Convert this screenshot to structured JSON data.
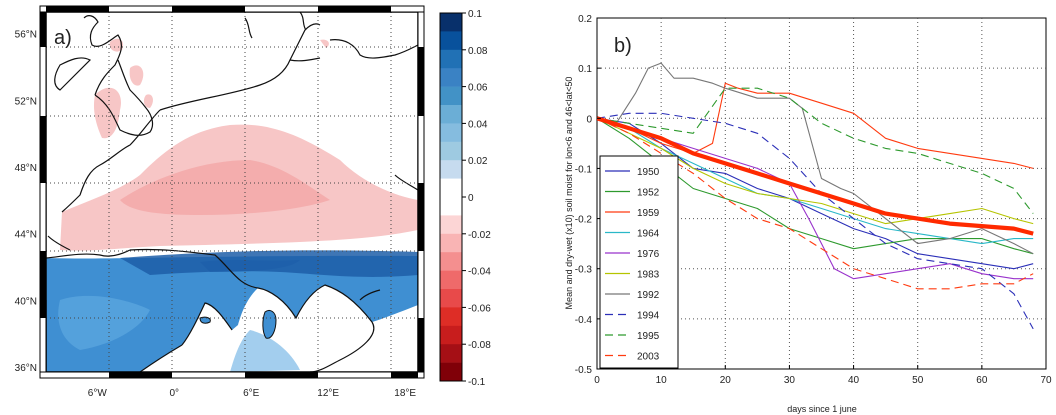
{
  "chart_data": [
    {
      "type": "heatmap",
      "panel_label": "a)",
      "x_tick_labels": [
        "6°W",
        "0°",
        "6°E",
        "12°E",
        "18°E"
      ],
      "y_tick_labels": [
        "56°N",
        "52°N",
        "48°N",
        "44°N",
        "40°N",
        "36°N"
      ],
      "x_ticks": [
        -6,
        0,
        6,
        12,
        18
      ],
      "y_ticks": [
        56,
        52,
        48,
        44,
        40,
        36
      ],
      "xlim": [
        -10,
        19
      ],
      "ylim": [
        35.7,
        57.3
      ],
      "grid": true,
      "grid_style": "dotted",
      "colorbar": {
        "tick_labels": [
          "0.1",
          "0.08",
          "0.06",
          "0.04",
          "0.02",
          "0",
          "-0.02",
          "-0.04",
          "-0.06",
          "-0.08",
          "-0.1"
        ],
        "range": [
          -0.1,
          0.1
        ],
        "levels": 20,
        "colors": [
          "#08306b",
          "#08519c",
          "#2171b5",
          "#3a82c4",
          "#4292c6",
          "#6baed6",
          "#85bcdf",
          "#9ecae1",
          "#c6dbef",
          "#ffffff",
          "#ffffff",
          "#fcd5d5",
          "#f9b4b4",
          "#f48f8f",
          "#ef6a6a",
          "#e84a4a",
          "#de2d26",
          "#c81d1d",
          "#a50f15",
          "#800008"
        ]
      },
      "colors": {
        "land_outline": "#111111",
        "negative_area": "#f7c6c6",
        "positive_area": "#3f8fd2",
        "positive_dark": "#1d5ea8"
      }
    },
    {
      "type": "line",
      "panel_label": "b)",
      "xlabel": "days since 1 june",
      "ylabel": "Mean and dry-wet (x10) soil moist for lon<6 and 46<lat<50",
      "xlim": [
        0,
        70
      ],
      "ylim": [
        -0.5,
        0.2
      ],
      "x_ticks": [
        0,
        10,
        20,
        30,
        40,
        50,
        60,
        70
      ],
      "x_tick_labels": [
        "0",
        "10",
        "20",
        "30",
        "40",
        "50",
        "60",
        "70"
      ],
      "y_ticks": [
        0.2,
        0.1,
        0,
        -0.1,
        -0.2,
        -0.3,
        -0.4,
        -0.5
      ],
      "y_tick_labels": [
        "0.2",
        "0.1",
        "0",
        "-0.1",
        "-0.2",
        "-0.3",
        "-0.4",
        "-0.5"
      ],
      "grid": true,
      "legend_position": "left",
      "series": [
        {
          "name": "1950",
          "color": "#2b2fb8",
          "dash": "solid",
          "x": [
            0,
            5,
            10,
            15,
            20,
            25,
            30,
            35,
            40,
            45,
            50,
            55,
            60,
            65,
            68
          ],
          "y": [
            0,
            -0.01,
            -0.05,
            -0.1,
            -0.11,
            -0.14,
            -0.16,
            -0.19,
            -0.22,
            -0.24,
            -0.27,
            -0.28,
            -0.29,
            -0.3,
            -0.29
          ]
        },
        {
          "name": "1952",
          "color": "#2e9a2e",
          "dash": "solid",
          "x": [
            0,
            5,
            10,
            15,
            20,
            25,
            30,
            35,
            40,
            45,
            50,
            55,
            60,
            65,
            68
          ],
          "y": [
            0,
            -0.04,
            -0.09,
            -0.14,
            -0.16,
            -0.18,
            -0.22,
            -0.24,
            -0.26,
            -0.25,
            -0.24,
            -0.24,
            -0.24,
            -0.26,
            -0.27
          ]
        },
        {
          "name": "1959",
          "color": "#ff3b10",
          "dash": "solid",
          "x": [
            0,
            5,
            10,
            15,
            18,
            20,
            22,
            25,
            30,
            35,
            40,
            45,
            50,
            55,
            60,
            65,
            68
          ],
          "y": [
            0,
            -0.02,
            -0.05,
            -0.07,
            -0.05,
            0.07,
            0.06,
            0.05,
            0.05,
            0.03,
            0.01,
            -0.04,
            -0.06,
            -0.07,
            -0.08,
            -0.09,
            -0.1
          ]
        },
        {
          "name": "1964",
          "color": "#2ab8c8",
          "dash": "solid",
          "x": [
            0,
            5,
            10,
            15,
            20,
            25,
            30,
            35,
            40,
            45,
            50,
            55,
            60,
            65,
            68
          ],
          "y": [
            0,
            -0.02,
            -0.06,
            -0.09,
            -0.12,
            -0.15,
            -0.16,
            -0.18,
            -0.2,
            -0.22,
            -0.23,
            -0.24,
            -0.25,
            -0.24,
            -0.24
          ]
        },
        {
          "name": "1976",
          "color": "#9933cc",
          "dash": "solid",
          "x": [
            0,
            5,
            10,
            15,
            20,
            25,
            30,
            33,
            37,
            40,
            45,
            50,
            55,
            60,
            65,
            68
          ],
          "y": [
            0,
            -0.02,
            -0.04,
            -0.06,
            -0.08,
            -0.1,
            -0.13,
            -0.2,
            -0.3,
            -0.32,
            -0.31,
            -0.3,
            -0.29,
            -0.31,
            -0.32,
            -0.32
          ]
        },
        {
          "name": "1983",
          "color": "#b5c400",
          "dash": "solid",
          "x": [
            0,
            5,
            10,
            15,
            20,
            25,
            30,
            35,
            40,
            45,
            50,
            55,
            60,
            65,
            68
          ],
          "y": [
            0,
            -0.03,
            -0.06,
            -0.1,
            -0.13,
            -0.15,
            -0.16,
            -0.17,
            -0.19,
            -0.21,
            -0.2,
            -0.19,
            -0.18,
            -0.2,
            -0.21
          ]
        },
        {
          "name": "1992",
          "color": "#777777",
          "dash": "solid",
          "x": [
            0,
            3,
            6,
            8,
            10,
            12,
            15,
            18,
            20,
            25,
            30,
            32,
            35,
            38,
            40,
            45,
            50,
            55,
            60,
            65,
            68
          ],
          "y": [
            0,
            -0.01,
            0.05,
            0.1,
            0.11,
            0.08,
            0.08,
            0.07,
            0.06,
            0.04,
            0.04,
            0.02,
            -0.12,
            -0.14,
            -0.15,
            -0.2,
            -0.25,
            -0.24,
            -0.22,
            -0.25,
            -0.27
          ]
        },
        {
          "name": "1994",
          "color": "#2b2fb8",
          "dash": "longdash",
          "x": [
            0,
            5,
            10,
            15,
            20,
            25,
            30,
            35,
            40,
            45,
            50,
            55,
            60,
            65,
            68
          ],
          "y": [
            0,
            0.01,
            0.01,
            0,
            -0.01,
            -0.03,
            -0.08,
            -0.15,
            -0.2,
            -0.25,
            -0.28,
            -0.29,
            -0.3,
            -0.35,
            -0.42
          ]
        },
        {
          "name": "1995",
          "color": "#2e9a2e",
          "dash": "longdash",
          "x": [
            0,
            5,
            10,
            15,
            20,
            25,
            30,
            35,
            40,
            45,
            50,
            55,
            60,
            65,
            68
          ],
          "y": [
            0,
            -0.01,
            -0.02,
            -0.03,
            0.06,
            0.06,
            0.04,
            -0.01,
            -0.04,
            -0.06,
            -0.07,
            -0.09,
            -0.11,
            -0.14,
            -0.19
          ]
        },
        {
          "name": "2003",
          "color": "#ff3b10",
          "dash": "longdash",
          "x": [
            0,
            5,
            10,
            15,
            20,
            25,
            30,
            35,
            40,
            45,
            50,
            55,
            60,
            65,
            68
          ],
          "y": [
            0,
            -0.03,
            -0.07,
            -0.11,
            -0.16,
            -0.2,
            -0.22,
            -0.26,
            -0.3,
            -0.32,
            -0.34,
            -0.34,
            -0.33,
            -0.33,
            -0.31
          ]
        },
        {
          "name": "",
          "color": "#ff2a00",
          "dash": "solid",
          "width": 4.2,
          "x": [
            0,
            5,
            10,
            15,
            20,
            25,
            30,
            35,
            40,
            45,
            50,
            55,
            60,
            65,
            68
          ],
          "y": [
            0,
            -0.02,
            -0.04,
            -0.07,
            -0.09,
            -0.11,
            -0.13,
            -0.15,
            -0.17,
            -0.19,
            -0.2,
            -0.21,
            -0.215,
            -0.22,
            -0.23
          ]
        }
      ]
    }
  ]
}
